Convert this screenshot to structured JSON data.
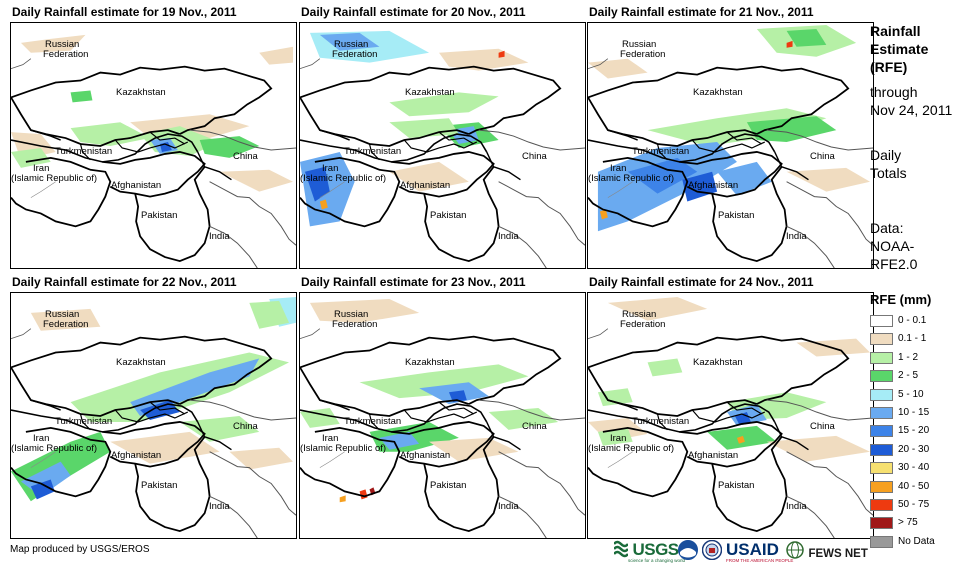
{
  "panels": [
    {
      "title": "Daily Rainfall estimate for 19 Nov., 2011"
    },
    {
      "title": "Daily Rainfall estimate for 20 Nov., 2011"
    },
    {
      "title": "Daily Rainfall estimate for 21 Nov., 2011"
    },
    {
      "title": "Daily Rainfall estimate for 22 Nov., 2011"
    },
    {
      "title": "Daily Rainfall estimate for 23 Nov., 2011"
    },
    {
      "title": "Daily Rainfall estimate for 24 Nov., 2011"
    }
  ],
  "country_labels": {
    "russia_1": "Russian",
    "russia_2": "Federation",
    "kazakhstan": "Kazakhstan",
    "turkmenistan": "Turkmenistan",
    "iran_1": "Iran",
    "iran_2": "(Islamic Republic of)",
    "afghanistan": "Afghanistan",
    "pakistan": "Pakistan",
    "china": "China",
    "india": "India"
  },
  "sidebar": {
    "title_1": "Rainfall",
    "title_2": "Estimate",
    "title_3": "(RFE)",
    "through_1": "through",
    "through_2": "Nov 24, 2011",
    "daily_1": "Daily",
    "daily_2": "Totals",
    "data_1": "Data:",
    "data_2": "NOAA-",
    "data_3": "RFE2.0"
  },
  "legend": {
    "title": "RFE (mm)",
    "items": [
      {
        "label": "0 - 0.1",
        "color": "#ffffff"
      },
      {
        "label": "0.1 - 1",
        "color": "#f0dcc0"
      },
      {
        "label": "1 - 2",
        "color": "#b6f0a6"
      },
      {
        "label": "2 - 5",
        "color": "#5ad66a"
      },
      {
        "label": "5 - 10",
        "color": "#a6ecf6"
      },
      {
        "label": "10 - 15",
        "color": "#6aaaf0"
      },
      {
        "label": "15 - 20",
        "color": "#3d83e8"
      },
      {
        "label": "20 - 30",
        "color": "#1e5cd6"
      },
      {
        "label": "30 - 40",
        "color": "#f6e070"
      },
      {
        "label": "40 - 50",
        "color": "#f6a020"
      },
      {
        "label": "50 - 75",
        "color": "#ee3a10"
      },
      {
        "label": "> 75",
        "color": "#a01818"
      },
      {
        "label": "No Data",
        "color": "#999999"
      }
    ]
  },
  "credit": "Map produced by USGS/EROS",
  "logos": {
    "usgs": "USGS",
    "usgs_tagline": "science for a changing world",
    "usaid": "USAID",
    "usaid_tagline": "FROM THE AMERICAN PEOPLE",
    "fewsnet": "FEWS NET"
  }
}
